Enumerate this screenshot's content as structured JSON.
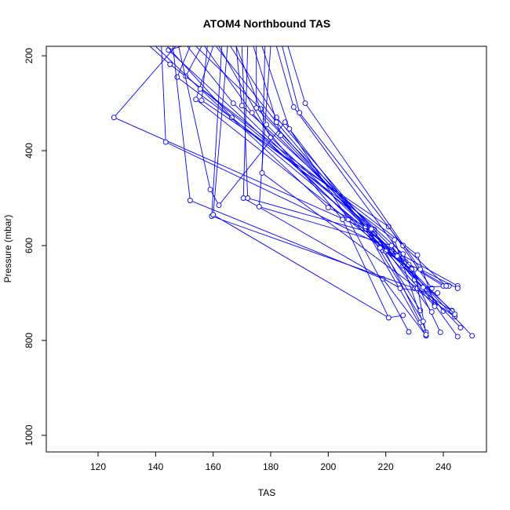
{
  "chart_data": {
    "type": "line",
    "title": "ATOM4 Northbound TAS",
    "xlabel": "TAS",
    "ylabel": "Pressure (mbar)",
    "xlim": [
      102,
      255
    ],
    "ylim": [
      1035,
      180
    ],
    "y_reversed": true,
    "x_ticks": [
      120,
      140,
      160,
      180,
      200,
      220,
      240
    ],
    "y_ticks": [
      200,
      400,
      600,
      800,
      1000
    ],
    "grid": false,
    "legend": "none",
    "color": "#0000ff",
    "markers": "open-circle",
    "series": [
      {
        "points": [
          [
            147,
            180
          ],
          [
            125.5,
            330
          ],
          [
            213,
            565
          ],
          [
            234,
            790
          ]
        ]
      },
      {
        "points": [
          [
            142,
            180
          ],
          [
            143.5,
            382
          ],
          [
            225,
            618
          ],
          [
            245,
            685
          ]
        ]
      },
      {
        "points": [
          [
            149,
            180
          ],
          [
            144.5,
            188
          ],
          [
            226,
            642
          ],
          [
            243,
            737
          ]
        ]
      },
      {
        "points": [
          [
            138,
            180
          ],
          [
            145,
            218
          ],
          [
            231,
            620
          ],
          [
            237,
            725
          ]
        ]
      },
      {
        "points": [
          [
            152,
            180
          ],
          [
            147.5,
            245
          ],
          [
            223,
            588
          ],
          [
            234,
            783
          ]
        ]
      },
      {
        "points": [
          [
            156,
            180
          ],
          [
            150.5,
            243
          ],
          [
            216,
            566
          ],
          [
            232,
            762
          ]
        ]
      },
      {
        "points": [
          [
            146,
            180
          ],
          [
            152,
            505
          ],
          [
            219,
            670
          ],
          [
            234,
            790
          ]
        ]
      },
      {
        "points": [
          [
            160,
            180
          ],
          [
            154,
            292
          ],
          [
            229,
            652
          ],
          [
            240,
            738
          ]
        ]
      },
      {
        "points": [
          [
            158,
            180
          ],
          [
            156,
            294
          ],
          [
            221,
            560
          ],
          [
            236,
            690
          ]
        ]
      },
      {
        "points": [
          [
            148,
            180
          ],
          [
            159,
            482
          ],
          [
            162,
            515
          ],
          [
            185,
            340
          ],
          [
            207,
            545
          ],
          [
            228,
            782
          ]
        ]
      },
      {
        "points": [
          [
            163,
            180
          ],
          [
            159.5,
            538
          ],
          [
            230,
            690
          ],
          [
            244,
            750
          ]
        ]
      },
      {
        "points": [
          [
            165,
            180
          ],
          [
            160,
            535
          ],
          [
            221,
            752
          ],
          [
            226,
            747
          ]
        ]
      },
      {
        "points": [
          [
            168,
            180
          ],
          [
            170,
            305
          ],
          [
            226,
            618
          ],
          [
            239,
            783
          ]
        ]
      },
      {
        "points": [
          [
            172,
            180
          ],
          [
            170.5,
            500
          ],
          [
            225,
            690
          ],
          [
            238,
            700
          ]
        ]
      },
      {
        "points": [
          [
            170,
            180
          ],
          [
            172,
            500
          ],
          [
            216,
            575
          ],
          [
            236,
            740
          ]
        ]
      },
      {
        "points": [
          [
            175,
            180
          ],
          [
            175,
            310
          ],
          [
            227,
            635
          ],
          [
            241,
            685
          ]
        ]
      },
      {
        "points": [
          [
            180,
            180
          ],
          [
            176,
            518
          ],
          [
            222,
            600
          ],
          [
            245,
            792
          ]
        ]
      },
      {
        "points": [
          [
            178,
            180
          ],
          [
            177,
            447
          ],
          [
            231,
            690
          ],
          [
            243,
            738
          ]
        ]
      },
      {
        "points": [
          [
            162,
            180
          ],
          [
            180,
            372
          ],
          [
            222,
            612
          ],
          [
            250,
            790
          ]
        ]
      },
      {
        "points": [
          [
            166,
            180
          ],
          [
            182,
            330
          ],
          [
            230,
            672
          ],
          [
            246,
            773
          ]
        ]
      },
      {
        "points": [
          [
            174,
            180
          ],
          [
            183.5,
            368
          ],
          [
            233,
            688
          ],
          [
            242,
            685
          ]
        ]
      },
      {
        "points": [
          [
            177,
            180
          ],
          [
            186.5,
            354
          ],
          [
            219,
            610
          ],
          [
            232,
            737
          ]
        ]
      },
      {
        "points": [
          [
            182,
            180
          ],
          [
            188,
            308
          ],
          [
            228,
            640
          ],
          [
            240,
            685
          ]
        ]
      },
      {
        "points": [
          [
            154,
            180
          ],
          [
            176.5,
            312
          ],
          [
            220,
            612
          ],
          [
            237,
            728
          ]
        ]
      },
      {
        "points": [
          [
            144,
            180
          ],
          [
            166.5,
            330
          ],
          [
            230,
            650
          ],
          [
            234,
            788
          ]
        ]
      },
      {
        "points": [
          [
            161,
            180
          ],
          [
            182,
            340
          ],
          [
            213,
            560
          ],
          [
            233,
            760
          ]
        ]
      },
      {
        "points": [
          [
            157,
            180
          ],
          [
            173.5,
            320
          ],
          [
            205,
            545
          ],
          [
            221,
            752
          ]
        ]
      },
      {
        "points": [
          [
            151,
            180
          ],
          [
            167,
            300
          ],
          [
            218,
            605
          ],
          [
            229,
            650
          ]
        ]
      },
      {
        "points": [
          [
            168,
            180
          ],
          [
            178.5,
            345
          ],
          [
            224,
            622
          ],
          [
            244,
            745
          ]
        ]
      },
      {
        "points": [
          [
            184,
            180
          ],
          [
            190,
            320
          ],
          [
            226,
            600
          ],
          [
            241,
            685
          ]
        ]
      },
      {
        "points": [
          [
            140,
            180
          ],
          [
            155.5,
            270
          ],
          [
            200,
            520
          ],
          [
            215,
            565
          ]
        ]
      },
      {
        "points": [
          [
            186,
            180
          ],
          [
            192,
            300
          ],
          [
            232,
            650
          ],
          [
            245,
            690
          ]
        ]
      }
    ]
  }
}
